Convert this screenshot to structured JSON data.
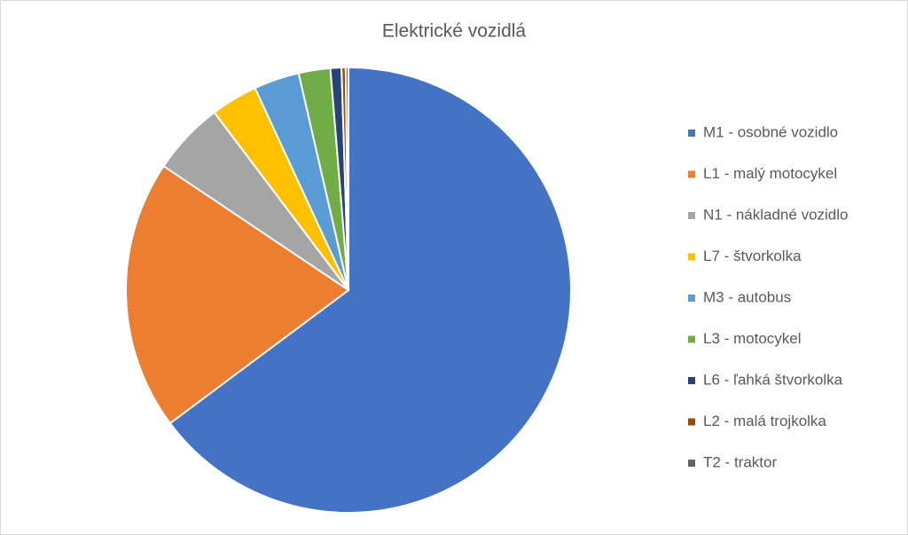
{
  "chart_data": {
    "type": "pie",
    "title": "Elektrické vozidlá",
    "categories": [
      "M1 - osobné vozidlo",
      "L1 - malý motocykel",
      "N1 - nákladné vozidlo",
      "L7 - štvorkolka",
      "M3 - autobus",
      "L3 - motocykel",
      "L6 - ľahká štvorkolka",
      "L2 - malá trojkolka",
      "T2 - traktor"
    ],
    "values": [
      64.8,
      19.6,
      5.3,
      3.4,
      3.3,
      2.3,
      0.8,
      0.3,
      0.2
    ],
    "colors": [
      "#4472c4",
      "#ed7d31",
      "#a5a5a5",
      "#ffc000",
      "#5b9bd5",
      "#70ad47",
      "#264478",
      "#9e480e",
      "#636363"
    ],
    "legend": "right"
  }
}
